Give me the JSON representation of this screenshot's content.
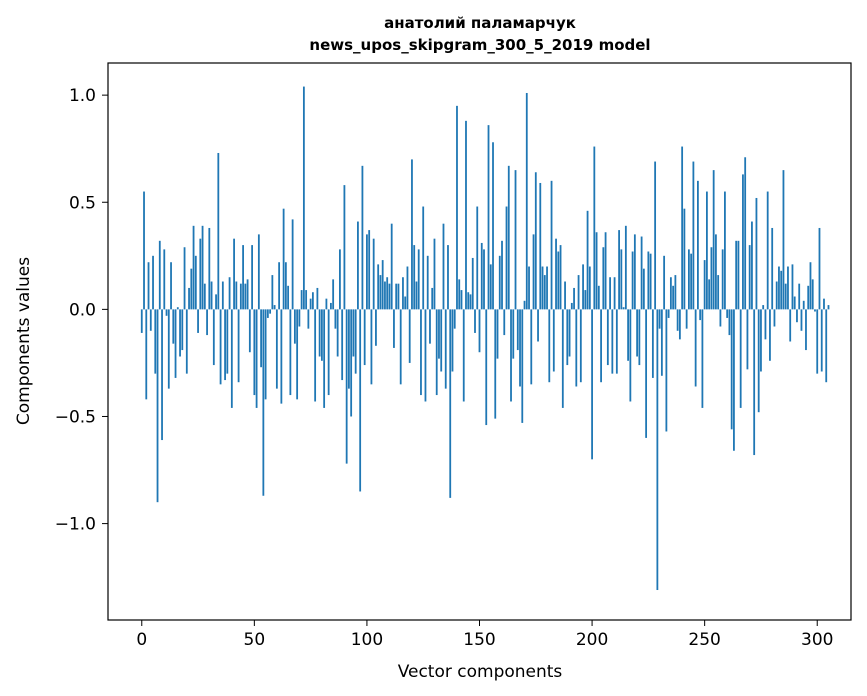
{
  "chart_data": {
    "type": "bar",
    "title_line1": "анатолий паламарчук",
    "title_line2": "news_upos_skipgram_300_5_2019 model",
    "xlabel": "Vector components",
    "ylabel": "Components values",
    "xlim": [
      -15,
      315
    ],
    "ylim": [
      -1.45,
      1.15
    ],
    "xticks": [
      0,
      50,
      100,
      150,
      200,
      250,
      300
    ],
    "xtick_labels": [
      "0",
      "50",
      "100",
      "150",
      "200",
      "250",
      "300"
    ],
    "yticks": [
      -1.0,
      -0.5,
      0.0,
      0.5,
      1.0
    ],
    "ytick_labels": [
      "−1.0",
      "−0.5",
      "0.0",
      "0.5",
      "1.0"
    ],
    "bar_color": "#1f77b4",
    "grid": false,
    "series": [
      {
        "x_start": 0,
        "values": [
          -0.11,
          0.55,
          -0.42,
          0.22,
          -0.1,
          0.25,
          -0.3,
          -0.9,
          0.32,
          -0.61,
          0.28,
          -0.03,
          -0.37,
          0.22,
          -0.16,
          -0.32,
          0.01,
          -0.22,
          -0.19,
          0.29,
          -0.3,
          0.1,
          0.19,
          0.39,
          0.25,
          -0.11,
          0.33,
          0.39,
          0.12,
          -0.12,
          0.38,
          0.13,
          -0.26,
          0.07,
          0.73,
          -0.35,
          0.13,
          -0.33,
          -0.3,
          0.15,
          -0.46,
          0.33,
          0.13,
          -0.34,
          0.12,
          0.3,
          0.12,
          0.14,
          -0.2,
          0.3,
          -0.4,
          -0.46,
          0.35,
          -0.27,
          -0.87,
          -0.42,
          -0.04,
          -0.02,
          0.16,
          0.02,
          -0.37,
          0.22,
          -0.44,
          0.47,
          0.22,
          0.11,
          -0.4,
          0.42,
          -0.16,
          -0.42,
          -0.08,
          0.09,
          1.04,
          0.09,
          -0.09,
          0.05,
          0.08,
          -0.43,
          0.1,
          -0.22,
          -0.24,
          -0.46,
          0.05,
          -0.4,
          0.03,
          0.14,
          -0.09,
          -0.22,
          0.28,
          -0.33,
          0.58,
          -0.72,
          -0.37,
          -0.5,
          -0.22,
          -0.3,
          0.41,
          -0.85,
          0.67,
          -0.26,
          0.35,
          0.37,
          -0.35,
          0.33,
          -0.17,
          0.21,
          0.16,
          0.23,
          0.13,
          0.15,
          0.12,
          0.4,
          -0.18,
          0.12,
          0.12,
          -0.35,
          0.15,
          0.06,
          0.2,
          -0.25,
          0.7,
          0.3,
          0.13,
          0.28,
          -0.4,
          0.48,
          -0.43,
          0.25,
          -0.16,
          0.1,
          0.33,
          -0.4,
          -0.23,
          -0.29,
          0.4,
          -0.37,
          0.3,
          -0.88,
          -0.29,
          -0.09,
          0.95,
          0.14,
          0.09,
          -0.43,
          0.88,
          0.08,
          0.07,
          0.24,
          -0.11,
          0.48,
          -0.2,
          0.31,
          0.28,
          -0.54,
          0.86,
          0.21,
          0.78,
          -0.51,
          -0.23,
          0.25,
          0.32,
          -0.12,
          0.48,
          0.67,
          -0.43,
          -0.23,
          0.65,
          -0.19,
          -0.36,
          -0.53,
          0.04,
          1.01,
          0.2,
          -0.35,
          0.35,
          0.64,
          -0.15,
          0.59,
          0.2,
          0.16,
          0.2,
          -0.34,
          0.6,
          -0.29,
          0.33,
          0.27,
          0.3,
          -0.46,
          0.13,
          -0.26,
          -0.22,
          0.03,
          0.1,
          -0.36,
          0.16,
          -0.34,
          0.21,
          0.09,
          0.46,
          0.2,
          -0.7,
          0.76,
          0.36,
          0.11,
          -0.34,
          0.29,
          0.36,
          -0.26,
          0.15,
          -0.3,
          0.15,
          -0.3,
          0.37,
          0.28,
          0.01,
          0.39,
          -0.24,
          -0.43,
          0.27,
          0.35,
          -0.22,
          -0.26,
          0.34,
          0.19,
          -0.6,
          0.27,
          0.26,
          -0.32,
          0.69,
          -1.31,
          -0.09,
          -0.31,
          0.25,
          -0.57,
          -0.04,
          0.15,
          0.11,
          0.16,
          -0.1,
          -0.14,
          0.76,
          0.47,
          -0.09,
          0.28,
          0.26,
          0.69,
          -0.36,
          0.6,
          -0.05,
          -0.46,
          0.23,
          0.55,
          0.14,
          0.29,
          0.65,
          0.35,
          0.16,
          -0.08,
          0.28,
          0.55,
          -0.04,
          -0.12,
          -0.56,
          -0.66,
          0.32,
          0.32,
          -0.46,
          0.63,
          0.71,
          -0.28,
          0.3,
          0.41,
          -0.68,
          0.52,
          -0.48,
          -0.29,
          0.02,
          -0.14,
          0.55,
          -0.24,
          0.38,
          -0.08,
          0.13,
          0.2,
          0.18,
          0.65,
          0.12,
          0.2,
          -0.15,
          0.21,
          0.06,
          -0.06,
          0.12,
          -0.1,
          0.04,
          -0.19,
          0.11,
          0.22,
          0.14,
          -0.01,
          -0.3,
          0.38,
          -0.29,
          0.05,
          -0.34,
          0.02
        ]
      }
    ]
  }
}
